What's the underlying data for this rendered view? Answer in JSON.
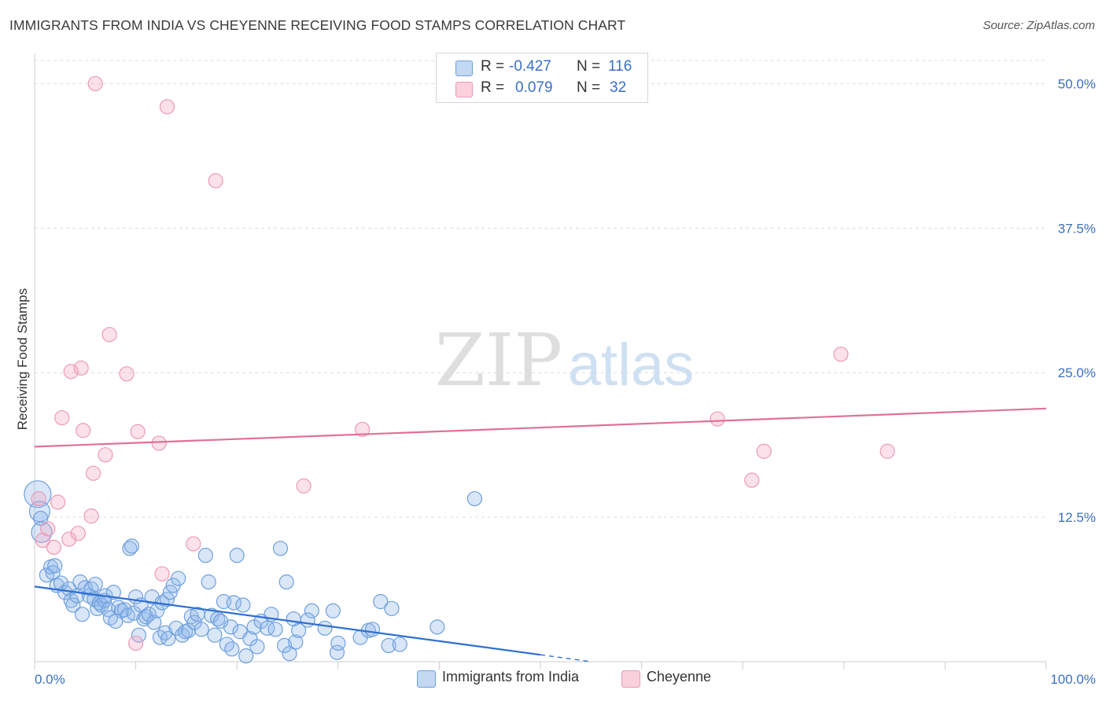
{
  "header": {
    "title": "IMMIGRANTS FROM INDIA VS CHEYENNE RECEIVING FOOD STAMPS CORRELATION CHART",
    "source": "Source: ZipAtlas.com"
  },
  "watermark": {
    "zip": "ZIP",
    "atlas": "atlas"
  },
  "legend": {
    "rows": [
      {
        "r_label": "R =",
        "r_value": "-0.427",
        "n_label": "N =",
        "n_value": "116",
        "color": "#8fb8ea"
      },
      {
        "r_label": "R =",
        "r_value": "0.079",
        "n_label": "N =",
        "n_value": "32",
        "color": "#f4a9c0"
      }
    ]
  },
  "bottom_legend": {
    "india": "Immigrants from India",
    "cheyenne": "Cheyenne"
  },
  "colors": {
    "india_fill": "rgba(143,184,234,0.35)",
    "india_stroke": "#6f9fdc",
    "india_line": "#2f6fd0",
    "cheyenne_fill": "rgba(244,169,192,0.35)",
    "cheyenne_stroke": "#ec9ab6",
    "cheyenne_line": "#e0709a",
    "tick_text": "#3a6fc4",
    "grid": "#dcdcdc"
  },
  "chart_data": {
    "type": "scatter",
    "title": "IMMIGRANTS FROM INDIA VS CHEYENNE RECEIVING FOOD STAMPS CORRELATION CHART",
    "xlabel": "",
    "ylabel": "Receiving Food Stamps",
    "xlim": [
      0,
      100
    ],
    "ylim": [
      0,
      52
    ],
    "x_tick_labels": [
      "0.0%",
      "100.0%"
    ],
    "y_ticks": [
      12.5,
      25.0,
      37.5,
      50.0
    ],
    "y_tick_labels": [
      "12.5%",
      "25.0%",
      "37.5%",
      "50.0%"
    ],
    "grid": true,
    "legend_position": "top-center",
    "series": [
      {
        "name": "Immigrants from India",
        "r": -0.427,
        "n": 116,
        "trend": {
          "x": [
            0,
            50,
            55
          ],
          "y": [
            6.5,
            0.6,
            0.0
          ],
          "dashed_from": 50
        },
        "points": [
          {
            "x": 0.3,
            "y": 14.5,
            "s": 3
          },
          {
            "x": 0.5,
            "y": 13.0,
            "s": 2
          },
          {
            "x": 0.7,
            "y": 11.2,
            "s": 2
          },
          {
            "x": 0.6,
            "y": 12.4,
            "s": 1
          },
          {
            "x": 1.2,
            "y": 7.5,
            "s": 1
          },
          {
            "x": 1.6,
            "y": 8.2,
            "s": 1
          },
          {
            "x": 1.8,
            "y": 7.7,
            "s": 1
          },
          {
            "x": 2.0,
            "y": 8.3,
            "s": 1
          },
          {
            "x": 2.2,
            "y": 6.6,
            "s": 1
          },
          {
            "x": 2.6,
            "y": 6.8,
            "s": 1
          },
          {
            "x": 3.0,
            "y": 6.0,
            "s": 1
          },
          {
            "x": 3.4,
            "y": 6.3,
            "s": 1
          },
          {
            "x": 3.6,
            "y": 5.3,
            "s": 1
          },
          {
            "x": 3.8,
            "y": 4.9,
            "s": 1
          },
          {
            "x": 4.2,
            "y": 5.7,
            "s": 1
          },
          {
            "x": 4.5,
            "y": 6.9,
            "s": 1
          },
          {
            "x": 4.7,
            "y": 4.1,
            "s": 1
          },
          {
            "x": 5.0,
            "y": 6.4,
            "s": 1
          },
          {
            "x": 5.4,
            "y": 5.7,
            "s": 1
          },
          {
            "x": 5.6,
            "y": 6.3,
            "s": 1
          },
          {
            "x": 5.9,
            "y": 5.4,
            "s": 1
          },
          {
            "x": 6.0,
            "y": 6.7,
            "s": 1
          },
          {
            "x": 6.2,
            "y": 4.6,
            "s": 1
          },
          {
            "x": 6.4,
            "y": 5.1,
            "s": 1
          },
          {
            "x": 6.6,
            "y": 4.9,
            "s": 1
          },
          {
            "x": 6.9,
            "y": 5.3,
            "s": 1
          },
          {
            "x": 7.0,
            "y": 5.7,
            "s": 1
          },
          {
            "x": 7.3,
            "y": 4.5,
            "s": 1
          },
          {
            "x": 7.5,
            "y": 3.8,
            "s": 1
          },
          {
            "x": 7.8,
            "y": 6.0,
            "s": 1
          },
          {
            "x": 8.0,
            "y": 3.5,
            "s": 1
          },
          {
            "x": 8.3,
            "y": 4.7,
            "s": 1
          },
          {
            "x": 8.6,
            "y": 4.4,
            "s": 1
          },
          {
            "x": 8.9,
            "y": 4.5,
            "s": 1
          },
          {
            "x": 9.2,
            "y": 4.0,
            "s": 1
          },
          {
            "x": 9.4,
            "y": 9.8,
            "s": 1
          },
          {
            "x": 9.6,
            "y": 10.0,
            "s": 1
          },
          {
            "x": 9.8,
            "y": 4.2,
            "s": 1
          },
          {
            "x": 10.0,
            "y": 5.6,
            "s": 1
          },
          {
            "x": 10.3,
            "y": 2.3,
            "s": 1
          },
          {
            "x": 10.5,
            "y": 4.9,
            "s": 1
          },
          {
            "x": 10.8,
            "y": 3.7,
            "s": 1
          },
          {
            "x": 11.0,
            "y": 3.9,
            "s": 1
          },
          {
            "x": 11.3,
            "y": 4.1,
            "s": 1
          },
          {
            "x": 11.6,
            "y": 5.6,
            "s": 1
          },
          {
            "x": 11.8,
            "y": 3.4,
            "s": 1
          },
          {
            "x": 12.1,
            "y": 4.4,
            "s": 1
          },
          {
            "x": 12.4,
            "y": 2.1,
            "s": 1
          },
          {
            "x": 12.6,
            "y": 5.1,
            "s": 1
          },
          {
            "x": 12.9,
            "y": 2.5,
            "s": 1
          },
          {
            "x": 13.1,
            "y": 5.4,
            "s": 1
          },
          {
            "x": 13.2,
            "y": 2.0,
            "s": 1
          },
          {
            "x": 13.4,
            "y": 6.0,
            "s": 1
          },
          {
            "x": 13.7,
            "y": 6.6,
            "s": 1
          },
          {
            "x": 14.0,
            "y": 2.9,
            "s": 1
          },
          {
            "x": 14.2,
            "y": 7.2,
            "s": 1
          },
          {
            "x": 14.6,
            "y": 2.3,
            "s": 1
          },
          {
            "x": 14.9,
            "y": 2.6,
            "s": 1
          },
          {
            "x": 15.2,
            "y": 2.7,
            "s": 1
          },
          {
            "x": 15.5,
            "y": 3.9,
            "s": 1
          },
          {
            "x": 15.8,
            "y": 3.4,
            "s": 1
          },
          {
            "x": 16.1,
            "y": 4.1,
            "s": 1
          },
          {
            "x": 16.5,
            "y": 2.8,
            "s": 1
          },
          {
            "x": 16.9,
            "y": 9.2,
            "s": 1
          },
          {
            "x": 17.2,
            "y": 6.9,
            "s": 1
          },
          {
            "x": 17.5,
            "y": 4.0,
            "s": 1
          },
          {
            "x": 17.8,
            "y": 2.3,
            "s": 1
          },
          {
            "x": 18.1,
            "y": 3.7,
            "s": 1
          },
          {
            "x": 18.4,
            "y": 3.5,
            "s": 1
          },
          {
            "x": 18.7,
            "y": 5.2,
            "s": 1
          },
          {
            "x": 19.0,
            "y": 1.5,
            "s": 1
          },
          {
            "x": 19.4,
            "y": 3.0,
            "s": 1
          },
          {
            "x": 19.7,
            "y": 5.1,
            "s": 1
          },
          {
            "x": 19.5,
            "y": 1.1,
            "s": 1
          },
          {
            "x": 20.0,
            "y": 9.2,
            "s": 1
          },
          {
            "x": 20.3,
            "y": 2.6,
            "s": 1
          },
          {
            "x": 20.6,
            "y": 4.9,
            "s": 1
          },
          {
            "x": 20.9,
            "y": 0.5,
            "s": 1
          },
          {
            "x": 21.3,
            "y": 2.0,
            "s": 1
          },
          {
            "x": 21.7,
            "y": 3.0,
            "s": 1
          },
          {
            "x": 22.0,
            "y": 1.3,
            "s": 1
          },
          {
            "x": 22.4,
            "y": 3.5,
            "s": 1
          },
          {
            "x": 23.0,
            "y": 2.9,
            "s": 1
          },
          {
            "x": 23.4,
            "y": 4.1,
            "s": 1
          },
          {
            "x": 23.8,
            "y": 2.8,
            "s": 1
          },
          {
            "x": 24.3,
            "y": 9.8,
            "s": 1
          },
          {
            "x": 24.7,
            "y": 1.4,
            "s": 1
          },
          {
            "x": 24.9,
            "y": 6.9,
            "s": 1
          },
          {
            "x": 25.2,
            "y": 0.7,
            "s": 1
          },
          {
            "x": 25.6,
            "y": 3.7,
            "s": 1
          },
          {
            "x": 25.8,
            "y": 1.7,
            "s": 1
          },
          {
            "x": 26.1,
            "y": 2.7,
            "s": 1
          },
          {
            "x": 27.4,
            "y": 4.4,
            "s": 1
          },
          {
            "x": 27.0,
            "y": 3.6,
            "s": 1
          },
          {
            "x": 28.7,
            "y": 2.9,
            "s": 1
          },
          {
            "x": 29.5,
            "y": 4.4,
            "s": 1
          },
          {
            "x": 29.9,
            "y": 0.8,
            "s": 1
          },
          {
            "x": 30.0,
            "y": 1.6,
            "s": 1
          },
          {
            "x": 32.2,
            "y": 2.1,
            "s": 1
          },
          {
            "x": 33.0,
            "y": 2.7,
            "s": 1
          },
          {
            "x": 33.4,
            "y": 2.8,
            "s": 1
          },
          {
            "x": 34.2,
            "y": 5.2,
            "s": 1
          },
          {
            "x": 35.0,
            "y": 1.4,
            "s": 1
          },
          {
            "x": 35.3,
            "y": 4.6,
            "s": 1
          },
          {
            "x": 36.1,
            "y": 1.5,
            "s": 1
          },
          {
            "x": 39.8,
            "y": 3.0,
            "s": 1
          },
          {
            "x": 43.5,
            "y": 14.1,
            "s": 1
          }
        ]
      },
      {
        "name": "Cheyenne",
        "r": 0.079,
        "n": 32,
        "trend": {
          "x": [
            0,
            100
          ],
          "y": [
            18.6,
            21.9
          ]
        },
        "points": [
          {
            "x": 0.4,
            "y": 14.1,
            "s": 1
          },
          {
            "x": 0.8,
            "y": 10.5,
            "s": 1
          },
          {
            "x": 1.3,
            "y": 11.5,
            "s": 1
          },
          {
            "x": 1.9,
            "y": 9.9,
            "s": 1
          },
          {
            "x": 2.3,
            "y": 13.8,
            "s": 1
          },
          {
            "x": 2.7,
            "y": 21.1,
            "s": 1
          },
          {
            "x": 3.4,
            "y": 10.6,
            "s": 1
          },
          {
            "x": 3.6,
            "y": 25.1,
            "s": 1
          },
          {
            "x": 4.3,
            "y": 11.1,
            "s": 1
          },
          {
            "x": 4.6,
            "y": 25.4,
            "s": 1
          },
          {
            "x": 4.8,
            "y": 20.0,
            "s": 1
          },
          {
            "x": 5.6,
            "y": 12.6,
            "s": 1
          },
          {
            "x": 5.8,
            "y": 16.3,
            "s": 1
          },
          {
            "x": 7.0,
            "y": 17.9,
            "s": 1
          },
          {
            "x": 7.4,
            "y": 28.3,
            "s": 1
          },
          {
            "x": 9.1,
            "y": 24.9,
            "s": 1
          },
          {
            "x": 10.0,
            "y": 1.6,
            "s": 1
          },
          {
            "x": 10.2,
            "y": 19.9,
            "s": 1
          },
          {
            "x": 12.3,
            "y": 18.9,
            "s": 1
          },
          {
            "x": 12.6,
            "y": 7.6,
            "s": 1
          },
          {
            "x": 6.0,
            "y": 50.0,
            "s": 1
          },
          {
            "x": 13.1,
            "y": 48.0,
            "s": 1
          },
          {
            "x": 15.7,
            "y": 10.2,
            "s": 1
          },
          {
            "x": 17.9,
            "y": 41.6,
            "s": 1
          },
          {
            "x": 26.6,
            "y": 15.2,
            "s": 1
          },
          {
            "x": 32.4,
            "y": 20.1,
            "s": 1
          },
          {
            "x": 67.5,
            "y": 21.0,
            "s": 1
          },
          {
            "x": 70.9,
            "y": 15.7,
            "s": 1
          },
          {
            "x": 72.1,
            "y": 18.2,
            "s": 1
          },
          {
            "x": 79.7,
            "y": 26.6,
            "s": 1
          },
          {
            "x": 84.3,
            "y": 18.2,
            "s": 1
          }
        ]
      }
    ]
  }
}
